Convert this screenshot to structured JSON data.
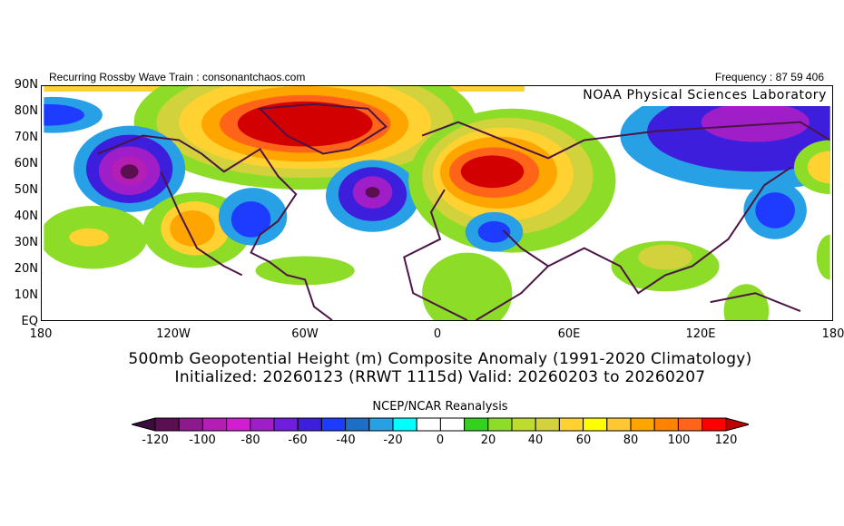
{
  "header": {
    "left": "Recurring Rossby Wave Train : consonantchaos.com",
    "right": "Frequency : 87 59 406",
    "credit": "NOAA Physical Sciences Laboratory"
  },
  "lat_labels": [
    "90N",
    "80N",
    "70N",
    "60N",
    "50N",
    "40N",
    "30N",
    "20N",
    "10N",
    "EQ"
  ],
  "lon_labels": [
    "180",
    "120W",
    "60W",
    "0",
    "60E",
    "120E",
    "180"
  ],
  "title": {
    "line1": "500mb Geopotential Height (m) Composite Anomaly (1991-2020 Climatology)",
    "line2": "Initialized: 20260123 (RRWT 1115d) Valid: 20260203 to 20260207"
  },
  "colorbar": {
    "title": "NCEP/NCAR Reanalysis",
    "labels": [
      "-120",
      "-100",
      "-80",
      "-60",
      "-40",
      "-20",
      "0",
      "20",
      "40",
      "60",
      "80",
      "100",
      "120"
    ],
    "low_arrow": "#3c0a3c",
    "high_arrow": "#c00000",
    "colors": [
      "#5a1050",
      "#8c1a8c",
      "#b41eb4",
      "#d21ed2",
      "#a01ec8",
      "#6e1edc",
      "#3c1edc",
      "#1e3cff",
      "#1e6ec8",
      "#28a0e6",
      "#00ffff",
      "#ffffff",
      "#ffffff",
      "#32d21e",
      "#8cdc28",
      "#bedc2d",
      "#d2d23c",
      "#ffd232",
      "#ffff00",
      "#ffc832",
      "#ffa500",
      "#ff8200",
      "#ff6418",
      "#ff0000"
    ]
  }
}
